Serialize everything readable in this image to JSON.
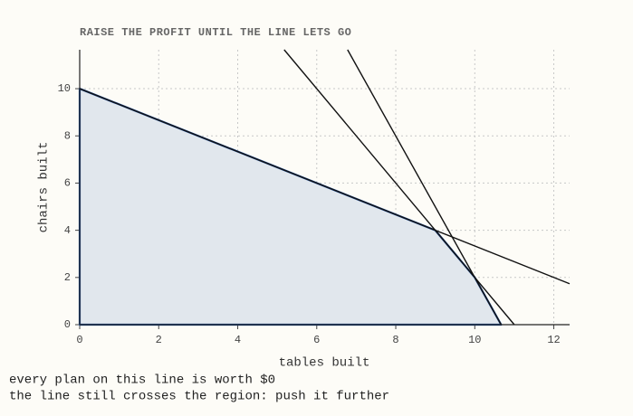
{
  "chart_data": {
    "type": "line",
    "title": "RAISE THE PROFIT UNTIL THE LINE LETS GO",
    "x_label": "tables built",
    "y_label": "chairs built",
    "annotations": [
      "every plan on this line is worth $0",
      "the line still crosses the region: push it further"
    ],
    "xlim": [
      0,
      12.4
    ],
    "ylim": [
      0,
      11.65
    ],
    "xticks": [
      0,
      2,
      4,
      6,
      8,
      10,
      12
    ],
    "yticks": [
      0,
      2,
      4,
      6,
      8,
      10
    ],
    "grid": true,
    "region": {
      "x": [
        0,
        0,
        9,
        10,
        10.667
      ],
      "y": [
        0,
        10,
        4,
        2,
        0
      ],
      "color": "#1f4e9a",
      "fill": "#e1e7ed"
    },
    "series": [
      {
        "x": [
          0,
          12.4
        ],
        "values": [
          10,
          1.733
        ],
        "color": "#111111"
      },
      {
        "x": [
          5.175,
          11
        ],
        "values": [
          11.65,
          0
        ],
        "color": "#111111"
      },
      {
        "x": [
          6.78,
          10.667
        ],
        "values": [
          11.65,
          0
        ],
        "color": "#111111"
      }
    ]
  }
}
